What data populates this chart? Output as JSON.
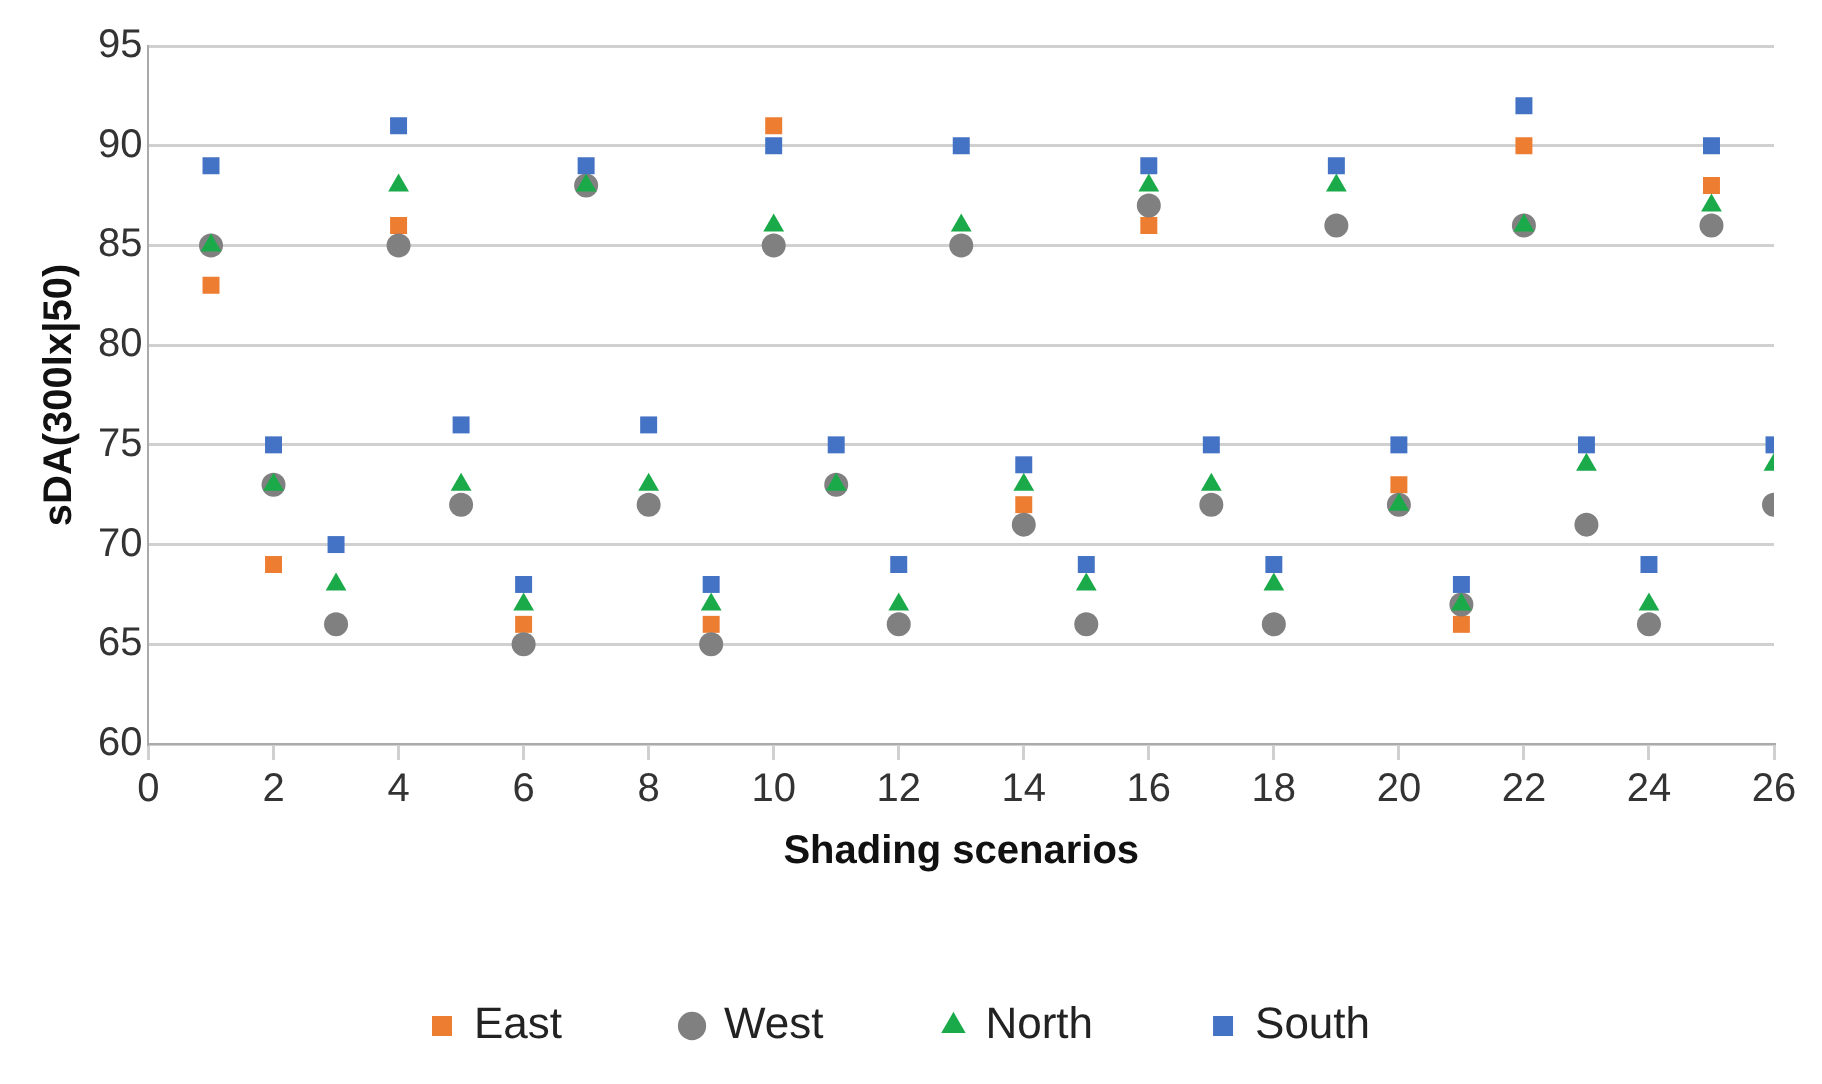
{
  "chart_data": {
    "type": "scatter",
    "xlabel": "Shading scenarios",
    "ylabel": "sDA(300lx|50)",
    "x": [
      1,
      2,
      3,
      4,
      5,
      6,
      7,
      8,
      9,
      10,
      11,
      12,
      13,
      14,
      15,
      16,
      17,
      18,
      19,
      20,
      21,
      22,
      23,
      24,
      25,
      26
    ],
    "series": [
      {
        "name": "East",
        "color": "#ed7d31",
        "marker": "square",
        "values": [
          83,
          69,
          null,
          86,
          null,
          66,
          null,
          null,
          66,
          91,
          null,
          null,
          null,
          72,
          null,
          86,
          null,
          null,
          null,
          73,
          66,
          90,
          null,
          null,
          88,
          null
        ]
      },
      {
        "name": "West",
        "color": "#808080",
        "marker": "circle",
        "values": [
          85,
          73,
          66,
          85,
          72,
          65,
          88,
          72,
          65,
          85,
          73,
          66,
          85,
          71,
          66,
          87,
          72,
          66,
          86,
          72,
          67,
          86,
          71,
          66,
          86,
          72
        ]
      },
      {
        "name": "North",
        "color": "#1aaa4a",
        "marker": "triangle",
        "values": [
          85,
          73,
          68,
          88,
          73,
          67,
          88,
          73,
          67,
          86,
          73,
          67,
          86,
          73,
          68,
          88,
          73,
          68,
          88,
          72,
          67,
          86,
          74,
          67,
          87,
          74
        ]
      },
      {
        "name": "South",
        "color": "#4472c4",
        "marker": "square",
        "values": [
          89,
          75,
          70,
          91,
          76,
          68,
          89,
          76,
          68,
          90,
          75,
          69,
          90,
          74,
          69,
          89,
          75,
          69,
          89,
          75,
          68,
          92,
          75,
          69,
          90,
          75
        ]
      }
    ],
    "xlim": [
      0,
      26
    ],
    "xticks": [
      0,
      2,
      4,
      6,
      8,
      10,
      12,
      14,
      16,
      18,
      20,
      22,
      24,
      26
    ],
    "ylim": [
      60,
      95
    ],
    "yticks": [
      60,
      65,
      70,
      75,
      80,
      85,
      90,
      95
    ],
    "grid": "y",
    "legend": "bottom"
  }
}
